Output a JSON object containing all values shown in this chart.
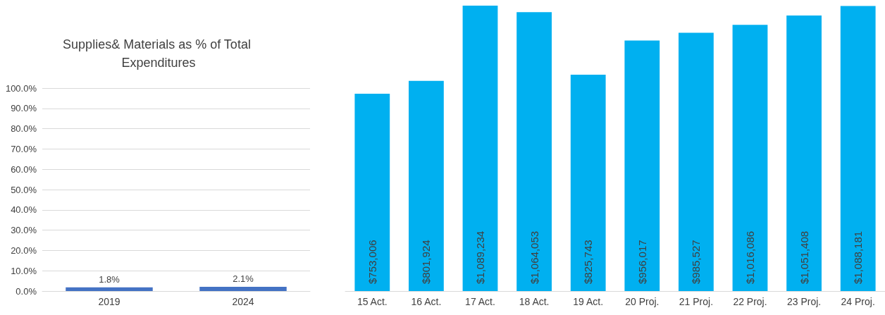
{
  "chart_data": [
    {
      "type": "bar",
      "title": "Supplies& Materials as % of Total Expenditures",
      "categories": [
        "2019",
        "2024"
      ],
      "values": [
        1.8,
        2.1
      ],
      "value_labels": [
        "1.8%",
        "2.1%"
      ],
      "color": "#4472c4",
      "ylim": [
        0,
        100
      ],
      "yticks": [
        {
          "value": 0,
          "label": "0.0%"
        },
        {
          "value": 10,
          "label": "10.0%"
        },
        {
          "value": 20,
          "label": "20.0%"
        },
        {
          "value": 30,
          "label": "30.0%"
        },
        {
          "value": 40,
          "label": "40.0%"
        },
        {
          "value": 50,
          "label": "50.0%"
        },
        {
          "value": 60,
          "label": "60.0%"
        },
        {
          "value": 70,
          "label": "70.0%"
        },
        {
          "value": 80,
          "label": "80.0%"
        },
        {
          "value": 90,
          "label": "90.0%"
        },
        {
          "value": 100,
          "label": "100.0%"
        }
      ],
      "grid": "y"
    },
    {
      "type": "bar",
      "categories": [
        "15 Act.",
        "16 Act.",
        "17 Act.",
        "18 Act.",
        "19 Act.",
        "20 Proj.",
        "21 Proj.",
        "22 Proj.",
        "23 Proj.",
        "24 Proj."
      ],
      "values": [
        753006,
        801924,
        1089234,
        1064053,
        825743,
        956017,
        985527,
        1016086,
        1051408,
        1088181
      ],
      "value_labels": [
        "$753,006",
        "$801,924",
        "$1,089,234",
        "$1,064,053",
        "$825,743",
        "$956,017",
        "$985,527",
        "$1,016,086",
        "$1,051,408",
        "$1,088,181"
      ],
      "color": "#00b0f0",
      "tick_labels": "x"
    }
  ]
}
